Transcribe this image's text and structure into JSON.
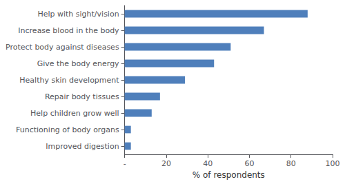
{
  "chart_data": {
    "type": "bar",
    "orientation": "horizontal",
    "categories": [
      "Improved digestion",
      "Functioning of body organs",
      "Help children grow well",
      "Repair body tissues",
      "Healthy skin development",
      "Give the body energy",
      "Protect body against diseases",
      "Increase blood in the body",
      "Help with sight/vision"
    ],
    "values": [
      3,
      3,
      13,
      17,
      29,
      43,
      51,
      67,
      88
    ],
    "color": "#4f7fbb",
    "xlabel": "% of respondents",
    "xlim": [
      0,
      100
    ],
    "xticks": [
      {
        "value": 0,
        "label": "-"
      },
      20,
      40,
      60,
      80,
      100
    ],
    "grid": false
  }
}
